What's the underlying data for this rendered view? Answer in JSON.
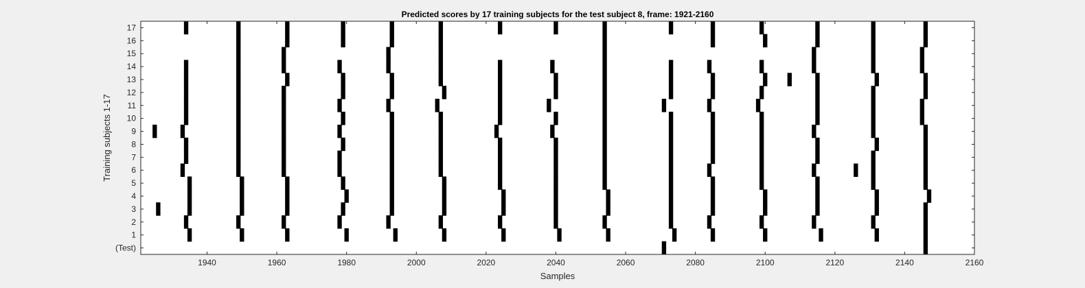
{
  "chart_data": {
    "type": "heatmap",
    "title": "Predicted scores by 17 training subjects for the test subject 8, frame: 1921-2160",
    "xlabel": "Samples",
    "ylabel": "Training subjects 1-17",
    "xlim": [
      1921,
      2160
    ],
    "xticks": [
      1940,
      1960,
      1980,
      2000,
      2020,
      2040,
      2060,
      2080,
      2100,
      2120,
      2140,
      2160
    ],
    "yticklabels": [
      "(Test)",
      "1",
      "2",
      "3",
      "4",
      "5",
      "6",
      "7",
      "8",
      "9",
      "10",
      "11",
      "12",
      "13",
      "14",
      "15",
      "16",
      "17"
    ],
    "grid": false,
    "colors": {
      "mark": "#000000",
      "plot_bg": "#ffffff",
      "figure_bg": "#f0f0f0",
      "text": "#262626",
      "axis": "#262626"
    },
    "rows": [
      {
        "label": "(Test)",
        "x": [
          2071,
          2146
        ]
      },
      {
        "label": "1",
        "x": [
          1935,
          1950,
          1963,
          1980,
          1994,
          2008,
          2025,
          2041,
          2055,
          2074,
          2085,
          2100,
          2116,
          2132,
          2146
        ]
      },
      {
        "label": "2",
        "x": [
          1934,
          1949,
          1962,
          1978,
          1992,
          2007,
          2024,
          2040,
          2054,
          2073,
          2084,
          2099,
          2114,
          2131,
          2146
        ]
      },
      {
        "label": "3",
        "x": [
          1926,
          1935,
          1950,
          1963,
          1979,
          1993,
          2008,
          2025,
          2040,
          2055,
          2073,
          2085,
          2100,
          2115,
          2132,
          2146
        ]
      },
      {
        "label": "4",
        "x": [
          1935,
          1950,
          1963,
          1980,
          1993,
          2008,
          2025,
          2040,
          2055,
          2073,
          2085,
          2100,
          2115,
          2132,
          2147
        ]
      },
      {
        "label": "5",
        "x": [
          1935,
          1950,
          1963,
          1979,
          1993,
          2008,
          2024,
          2040,
          2054,
          2073,
          2085,
          2099,
          2115,
          2131,
          2146
        ]
      },
      {
        "label": "6",
        "x": [
          1933,
          1949,
          1962,
          1978,
          1993,
          2007,
          2024,
          2040,
          2054,
          2073,
          2084,
          2099,
          2114,
          2126,
          2131,
          2146
        ]
      },
      {
        "label": "7",
        "x": [
          1934,
          1949,
          1962,
          1978,
          1993,
          2007,
          2024,
          2040,
          2054,
          2073,
          2085,
          2099,
          2115,
          2131,
          2146
        ]
      },
      {
        "label": "8",
        "x": [
          1934,
          1949,
          1962,
          1979,
          1993,
          2007,
          2024,
          2040,
          2054,
          2073,
          2085,
          2099,
          2115,
          2132,
          2146
        ]
      },
      {
        "label": "9",
        "x": [
          1925,
          1933,
          1949,
          1962,
          1978,
          1993,
          2007,
          2023,
          2039,
          2054,
          2073,
          2085,
          2099,
          2114,
          2131,
          2146
        ]
      },
      {
        "label": "10",
        "x": [
          1934,
          1949,
          1962,
          1979,
          1993,
          2007,
          2024,
          2040,
          2054,
          2073,
          2085,
          2099,
          2115,
          2131,
          2145
        ]
      },
      {
        "label": "11",
        "x": [
          1934,
          1949,
          1962,
          1978,
          1992,
          2006,
          2024,
          2038,
          2054,
          2071,
          2084,
          2098,
          2115,
          2131,
          2145
        ]
      },
      {
        "label": "12",
        "x": [
          1934,
          1949,
          1962,
          1979,
          1993,
          2008,
          2024,
          2040,
          2054,
          2073,
          2085,
          2099,
          2115,
          2131,
          2146
        ]
      },
      {
        "label": "13",
        "x": [
          1934,
          1949,
          1963,
          1979,
          1993,
          2007,
          2024,
          2040,
          2054,
          2073,
          2085,
          2100,
          2107,
          2115,
          2132,
          2146
        ]
      },
      {
        "label": "14",
        "x": [
          1934,
          1949,
          1962,
          1978,
          1992,
          2007,
          2024,
          2039,
          2054,
          2073,
          2084,
          2099,
          2114,
          2131,
          2145
        ]
      },
      {
        "label": "15",
        "x": [
          1949,
          1962,
          1992,
          2007,
          2054,
          2114,
          2131,
          2145
        ]
      },
      {
        "label": "16",
        "x": [
          1949,
          1963,
          1979,
          1993,
          2007,
          2054,
          2085,
          2100,
          2115,
          2131,
          2146
        ]
      },
      {
        "label": "17",
        "x": [
          1934,
          1949,
          1963,
          1979,
          1993,
          2007,
          2024,
          2040,
          2054,
          2073,
          2085,
          2099,
          2115,
          2131,
          2146
        ]
      }
    ]
  }
}
